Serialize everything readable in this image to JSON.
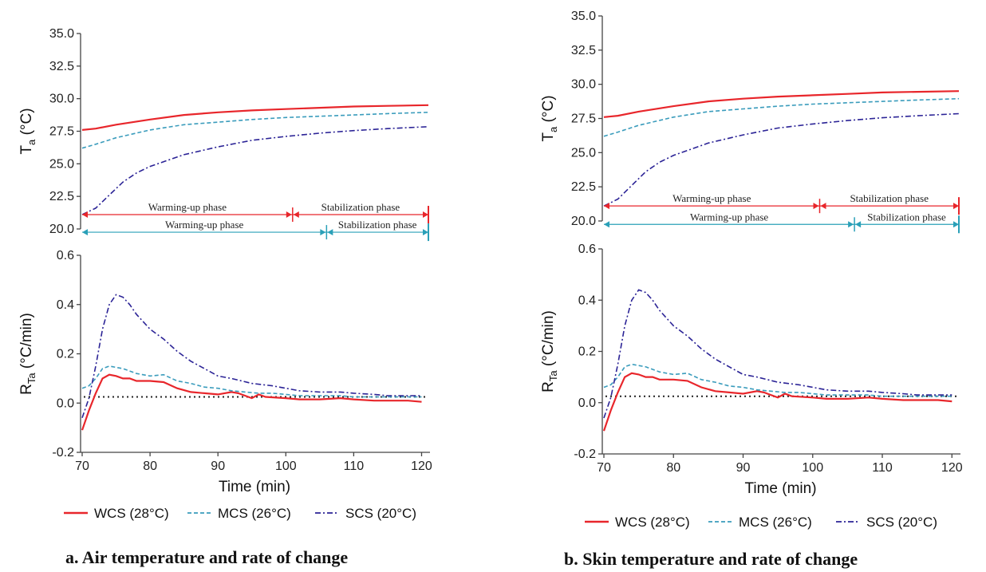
{
  "colors": {
    "wcs": "#e8262b",
    "mcs": "#3a9cbc",
    "scs": "#2b2396",
    "threshold": "#222222",
    "red_phase": "#e8262b",
    "teal_phase": "#2aa0b8"
  },
  "legend": [
    {
      "key": "wcs",
      "label": "WCS (28°C)",
      "style": "solid"
    },
    {
      "key": "mcs",
      "label": "MCS (26°C)",
      "style": "dashed"
    },
    {
      "key": "scs",
      "label": "SCS (20°C)",
      "style": "dashdot"
    }
  ],
  "phases": {
    "red": {
      "warm_label": "Warming-up phase",
      "stab_label": "Stabilization phase",
      "x_start": 70,
      "x_split": 101,
      "x_end": 121
    },
    "teal": {
      "warm_label": "Warming-up phase",
      "stab_label": "Stabilization phase",
      "x_start": 70,
      "x_split": 106,
      "x_end": 121
    }
  },
  "chart_data": [
    {
      "panel": "a",
      "caption": "a. Air temperature and rate of change",
      "top": {
        "type": "line",
        "ylabel_main": "T",
        "ylabel_sub": "a",
        "ylabel_unit": " (°C)",
        "ylim": [
          20.0,
          35.0
        ],
        "yticks": [
          "20.0",
          "22.5",
          "25.0",
          "27.5",
          "30.0",
          "32.5",
          "35.0"
        ],
        "xlim": [
          70,
          121
        ],
        "series": [
          {
            "key": "wcs",
            "x": [
              70,
              72,
              75,
              80,
              85,
              90,
              95,
              100,
              105,
              110,
              115,
              121
            ],
            "y": [
              27.6,
              27.7,
              28.0,
              28.4,
              28.75,
              28.95,
              29.1,
              29.2,
              29.3,
              29.4,
              29.45,
              29.5
            ]
          },
          {
            "key": "mcs",
            "x": [
              70,
              72,
              75,
              80,
              85,
              90,
              95,
              100,
              105,
              110,
              115,
              121
            ],
            "y": [
              26.2,
              26.5,
              27.0,
              27.6,
              28.0,
              28.2,
              28.4,
              28.55,
              28.65,
              28.75,
              28.85,
              28.95
            ]
          },
          {
            "key": "scs",
            "x": [
              70,
              72,
              74,
              76,
              78,
              80,
              85,
              90,
              95,
              100,
              105,
              110,
              115,
              121
            ],
            "y": [
              21.1,
              21.6,
              22.6,
              23.6,
              24.3,
              24.8,
              25.7,
              26.3,
              26.8,
              27.1,
              27.35,
              27.55,
              27.7,
              27.85
            ]
          }
        ]
      },
      "bottom": {
        "type": "line",
        "ylabel_main": "R",
        "ylabel_sub": "Ta",
        "ylabel_unit": " (°C/min)",
        "ylim": [
          -0.2,
          0.6
        ],
        "yticks": [
          "-0.2",
          "0.0",
          "0.2",
          "0.4",
          "0.6"
        ],
        "xlim": [
          70,
          121
        ],
        "xticks": [
          "70",
          "80",
          "90",
          "100",
          "110",
          "120"
        ],
        "xlabel": "Time (min)",
        "threshold": 0.025,
        "series": [
          {
            "key": "wcs",
            "x": [
              70,
              71,
              72,
              73,
              74,
              75,
              76,
              77,
              78,
              80,
              82,
              84,
              86,
              88,
              90,
              92,
              93,
              94,
              95,
              96,
              97,
              100,
              102,
              105,
              108,
              110,
              113,
              115,
              118,
              120
            ],
            "y": [
              -0.11,
              -0.03,
              0.04,
              0.1,
              0.115,
              0.11,
              0.1,
              0.1,
              0.09,
              0.09,
              0.085,
              0.06,
              0.045,
              0.04,
              0.035,
              0.045,
              0.04,
              0.03,
              0.02,
              0.035,
              0.025,
              0.02,
              0.015,
              0.015,
              0.02,
              0.015,
              0.01,
              0.01,
              0.01,
              0.005
            ]
          },
          {
            "key": "mcs",
            "x": [
              70,
              71,
              72,
              73,
              74,
              75,
              76,
              77,
              78,
              80,
              82,
              84,
              86,
              88,
              90,
              92,
              94,
              96,
              98,
              100,
              102,
              105,
              108,
              110,
              113,
              115,
              118,
              120
            ],
            "y": [
              0.06,
              0.07,
              0.1,
              0.14,
              0.15,
              0.145,
              0.14,
              0.13,
              0.12,
              0.11,
              0.115,
              0.09,
              0.08,
              0.065,
              0.06,
              0.05,
              0.045,
              0.04,
              0.04,
              0.035,
              0.03,
              0.03,
              0.03,
              0.025,
              0.025,
              0.025,
              0.025,
              0.025
            ]
          },
          {
            "key": "scs",
            "x": [
              70,
              71,
              72,
              73,
              74,
              75,
              76,
              77,
              78,
              80,
              82,
              84,
              86,
              88,
              90,
              92,
              95,
              98,
              100,
              102,
              105,
              108,
              110,
              113,
              115,
              118,
              120
            ],
            "y": [
              -0.06,
              0.02,
              0.15,
              0.3,
              0.4,
              0.44,
              0.43,
              0.4,
              0.36,
              0.3,
              0.26,
              0.21,
              0.17,
              0.14,
              0.11,
              0.1,
              0.08,
              0.07,
              0.06,
              0.05,
              0.045,
              0.045,
              0.04,
              0.035,
              0.03,
              0.03,
              0.03
            ]
          }
        ]
      }
    },
    {
      "panel": "b",
      "caption": "b. Skin temperature and rate of change",
      "top": {
        "type": "line",
        "ylabel_main": "T",
        "ylabel_sub": "a",
        "ylabel_unit": " (°C)",
        "ylim": [
          20.0,
          35.0
        ],
        "yticks": [
          "20.0",
          "22.5",
          "25.0",
          "27.5",
          "30.0",
          "32.5",
          "35.0"
        ],
        "xlim": [
          70,
          121
        ],
        "series": [
          {
            "key": "wcs",
            "x": [
              70,
              72,
              75,
              80,
              85,
              90,
              95,
              100,
              105,
              110,
              115,
              121
            ],
            "y": [
              27.6,
              27.7,
              28.0,
              28.4,
              28.75,
              28.95,
              29.1,
              29.2,
              29.3,
              29.4,
              29.45,
              29.5
            ]
          },
          {
            "key": "mcs",
            "x": [
              70,
              72,
              75,
              80,
              85,
              90,
              95,
              100,
              105,
              110,
              115,
              121
            ],
            "y": [
              26.2,
              26.5,
              27.0,
              27.6,
              28.0,
              28.2,
              28.4,
              28.55,
              28.65,
              28.75,
              28.85,
              28.95
            ]
          },
          {
            "key": "scs",
            "x": [
              70,
              72,
              74,
              76,
              78,
              80,
              85,
              90,
              95,
              100,
              105,
              110,
              115,
              121
            ],
            "y": [
              21.1,
              21.6,
              22.6,
              23.6,
              24.3,
              24.8,
              25.7,
              26.3,
              26.8,
              27.1,
              27.35,
              27.55,
              27.7,
              27.85
            ]
          }
        ]
      },
      "bottom": {
        "type": "line",
        "ylabel_main": "R",
        "ylabel_sub": "Ta",
        "ylabel_unit": " (°C/min)",
        "ylim": [
          -0.2,
          0.6
        ],
        "yticks": [
          "-0.2",
          "0.0",
          "0.2",
          "0.4",
          "0.6"
        ],
        "xlim": [
          70,
          121
        ],
        "xticks": [
          "70",
          "80",
          "90",
          "100",
          "110",
          "120"
        ],
        "xlabel": "Time (min)",
        "threshold": 0.025,
        "series": [
          {
            "key": "wcs",
            "x": [
              70,
              71,
              72,
              73,
              74,
              75,
              76,
              77,
              78,
              80,
              82,
              84,
              86,
              88,
              90,
              92,
              93,
              94,
              95,
              96,
              97,
              100,
              102,
              105,
              108,
              110,
              113,
              115,
              118,
              120
            ],
            "y": [
              -0.11,
              -0.03,
              0.04,
              0.1,
              0.115,
              0.11,
              0.1,
              0.1,
              0.09,
              0.09,
              0.085,
              0.06,
              0.045,
              0.04,
              0.035,
              0.045,
              0.04,
              0.03,
              0.02,
              0.035,
              0.025,
              0.02,
              0.015,
              0.015,
              0.02,
              0.015,
              0.01,
              0.01,
              0.01,
              0.005
            ]
          },
          {
            "key": "mcs",
            "x": [
              70,
              71,
              72,
              73,
              74,
              75,
              76,
              77,
              78,
              80,
              82,
              84,
              86,
              88,
              90,
              92,
              94,
              96,
              98,
              100,
              102,
              105,
              108,
              110,
              113,
              115,
              118,
              120
            ],
            "y": [
              0.06,
              0.07,
              0.1,
              0.14,
              0.15,
              0.145,
              0.14,
              0.13,
              0.12,
              0.11,
              0.115,
              0.09,
              0.08,
              0.065,
              0.06,
              0.05,
              0.045,
              0.04,
              0.04,
              0.035,
              0.03,
              0.03,
              0.03,
              0.025,
              0.025,
              0.025,
              0.025,
              0.025
            ]
          },
          {
            "key": "scs",
            "x": [
              70,
              71,
              72,
              73,
              74,
              75,
              76,
              77,
              78,
              80,
              82,
              84,
              86,
              88,
              90,
              92,
              95,
              98,
              100,
              102,
              105,
              108,
              110,
              113,
              115,
              118,
              120
            ],
            "y": [
              -0.06,
              0.02,
              0.15,
              0.3,
              0.4,
              0.44,
              0.43,
              0.4,
              0.36,
              0.3,
              0.26,
              0.21,
              0.17,
              0.14,
              0.11,
              0.1,
              0.08,
              0.07,
              0.06,
              0.05,
              0.045,
              0.045,
              0.04,
              0.035,
              0.03,
              0.03,
              0.03
            ]
          }
        ]
      }
    }
  ]
}
